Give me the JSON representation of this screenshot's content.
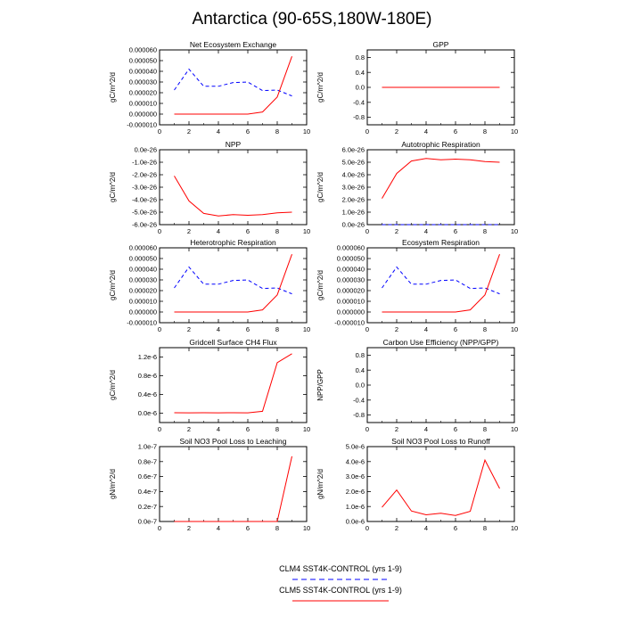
{
  "title": "Antarctica (90-65S,180W-180E)",
  "colors": {
    "clm4": "#0000ff",
    "clm5": "#ff0000",
    "axis": "#000000"
  },
  "legend": {
    "items": [
      {
        "label": "CLM4 SST4K-CONTROL (yrs 1-9)",
        "color": "#0000ff",
        "style": "dashed"
      },
      {
        "label": "CLM5 SST4K-CONTROL (yrs 1-9)",
        "color": "#ff0000",
        "style": "solid"
      }
    ]
  },
  "chart_data": [
    {
      "type": "line",
      "title": "Net Ecosystem Exchange",
      "ylabel": "gC/m^2/d",
      "xlim": [
        0,
        10
      ],
      "xticks": [
        "0",
        "2",
        "4",
        "6",
        "8",
        "10"
      ],
      "ylim": [
        -1e-05,
        6e-05
      ],
      "yticks": [
        {
          "v": -1e-05,
          "label": "-0.000010"
        },
        {
          "v": 0,
          "label": "0.000000"
        },
        {
          "v": 1e-05,
          "label": "0.000010"
        },
        {
          "v": 2e-05,
          "label": "0.000020"
        },
        {
          "v": 3e-05,
          "label": "0.000030"
        },
        {
          "v": 4e-05,
          "label": "0.000040"
        },
        {
          "v": 5e-05,
          "label": "0.000050"
        },
        {
          "v": 6e-05,
          "label": "0.000060"
        }
      ],
      "x": [
        1,
        2,
        3,
        4,
        5,
        6,
        7,
        8,
        9
      ],
      "series": [
        {
          "name": "CLM4 SST4K-CONTROL (yrs 1-9)",
          "style": "dashed",
          "values": [
            2.25e-05,
            4.2e-05,
            2.6e-05,
            2.6e-05,
            2.95e-05,
            3e-05,
            2.2e-05,
            2.25e-05,
            1.7e-05
          ]
        },
        {
          "name": "CLM5 SST4K-CONTROL (yrs 1-9)",
          "style": "solid",
          "values": [
            0,
            0,
            0,
            0,
            0,
            0,
            2e-06,
            1.6e-05,
            5.4e-05
          ]
        }
      ]
    },
    {
      "type": "line",
      "title": "GPP",
      "ylabel": "gC/m^2/d",
      "xlim": [
        0,
        10
      ],
      "xticks": [
        "0",
        "2",
        "4",
        "6",
        "8",
        "10"
      ],
      "ylim": [
        -1,
        1
      ],
      "yticks": [
        {
          "v": -0.8,
          "label": "-0.8"
        },
        {
          "v": -0.4,
          "label": "-0.4"
        },
        {
          "v": 0,
          "label": "0.0"
        },
        {
          "v": 0.4,
          "label": "0.4"
        },
        {
          "v": 0.8,
          "label": "0.8"
        }
      ],
      "x": [
        1,
        2,
        3,
        4,
        5,
        6,
        7,
        8,
        9
      ],
      "series": [
        {
          "name": "CLM4 SST4K-CONTROL (yrs 1-9)",
          "style": "dashed",
          "values": [
            0,
            0,
            0,
            0,
            0,
            0,
            0,
            0,
            0
          ]
        },
        {
          "name": "CLM5 SST4K-CONTROL (yrs 1-9)",
          "style": "solid",
          "values": [
            0,
            0,
            0,
            0,
            0,
            0,
            0,
            0,
            0
          ]
        }
      ]
    },
    {
      "type": "line",
      "title": "NPP",
      "ylabel": "gC/m^2/d",
      "xlim": [
        0,
        10
      ],
      "xticks": [
        "0",
        "2",
        "4",
        "6",
        "8",
        "10"
      ],
      "ylim": [
        -6,
        0
      ],
      "yticks": [
        {
          "v": 0,
          "label": "0.0e-26"
        },
        {
          "v": -1,
          "label": "-1.0e-26"
        },
        {
          "v": -2,
          "label": "-2.0e-26"
        },
        {
          "v": -3,
          "label": "-3.0e-26"
        },
        {
          "v": -4,
          "label": "-4.0e-26"
        },
        {
          "v": -5,
          "label": "-5.0e-26"
        },
        {
          "v": -6,
          "label": "-6.0e-26"
        }
      ],
      "x": [
        1,
        2,
        3,
        4,
        5,
        6,
        7,
        8,
        9
      ],
      "series": [
        {
          "name": "CLM5 SST4K-CONTROL (yrs 1-9)",
          "style": "solid",
          "values": [
            -2.1,
            -4.1,
            -5.1,
            -5.3,
            -5.2,
            -5.25,
            -5.2,
            -5.05,
            -5.0
          ]
        }
      ]
    },
    {
      "type": "line",
      "title": "Autotrophic Respiration",
      "ylabel": "gC/m^2/d",
      "xlim": [
        0,
        10
      ],
      "xticks": [
        "0",
        "2",
        "4",
        "6",
        "8",
        "10"
      ],
      "ylim": [
        0,
        6
      ],
      "yticks": [
        {
          "v": 0,
          "label": "0.0e-26"
        },
        {
          "v": 1,
          "label": "1.0e-26"
        },
        {
          "v": 2,
          "label": "2.0e-26"
        },
        {
          "v": 3,
          "label": "3.0e-26"
        },
        {
          "v": 4,
          "label": "4.0e-26"
        },
        {
          "v": 5,
          "label": "5.0e-26"
        },
        {
          "v": 6,
          "label": "6.0e-26"
        }
      ],
      "x": [
        1,
        2,
        3,
        4,
        5,
        6,
        7,
        8,
        9
      ],
      "series": [
        {
          "name": "CLM4 SST4K-CONTROL (yrs 1-9)",
          "style": "dashed",
          "values": [
            0,
            0,
            0,
            0,
            0,
            0,
            0,
            0,
            0
          ]
        },
        {
          "name": "CLM5 SST4K-CONTROL (yrs 1-9)",
          "style": "solid",
          "values": [
            2.1,
            4.1,
            5.1,
            5.3,
            5.2,
            5.25,
            5.2,
            5.05,
            5.0
          ]
        }
      ]
    },
    {
      "type": "line",
      "title": "Heterotrophic Respiration",
      "ylabel": "gC/m^2/d",
      "xlim": [
        0,
        10
      ],
      "xticks": [
        "0",
        "2",
        "4",
        "6",
        "8",
        "10"
      ],
      "ylim": [
        -1e-05,
        6e-05
      ],
      "yticks": [
        {
          "v": -1e-05,
          "label": "-0.000010"
        },
        {
          "v": 0,
          "label": "0.000000"
        },
        {
          "v": 1e-05,
          "label": "0.000010"
        },
        {
          "v": 2e-05,
          "label": "0.000020"
        },
        {
          "v": 3e-05,
          "label": "0.000030"
        },
        {
          "v": 4e-05,
          "label": "0.000040"
        },
        {
          "v": 5e-05,
          "label": "0.000050"
        },
        {
          "v": 6e-05,
          "label": "0.000060"
        }
      ],
      "x": [
        1,
        2,
        3,
        4,
        5,
        6,
        7,
        8,
        9
      ],
      "series": [
        {
          "name": "CLM4 SST4K-CONTROL (yrs 1-9)",
          "style": "dashed",
          "values": [
            2.25e-05,
            4.2e-05,
            2.6e-05,
            2.6e-05,
            2.95e-05,
            3e-05,
            2.2e-05,
            2.25e-05,
            1.7e-05
          ]
        },
        {
          "name": "CLM5 SST4K-CONTROL (yrs 1-9)",
          "style": "solid",
          "values": [
            0,
            0,
            0,
            0,
            0,
            0,
            2e-06,
            1.6e-05,
            5.4e-05
          ]
        }
      ]
    },
    {
      "type": "line",
      "title": "Ecosystem Respiration",
      "ylabel": "gC/m^2/d",
      "xlim": [
        0,
        10
      ],
      "xticks": [
        "0",
        "2",
        "4",
        "6",
        "8",
        "10"
      ],
      "ylim": [
        -1e-05,
        6e-05
      ],
      "yticks": [
        {
          "v": -1e-05,
          "label": "-0.000010"
        },
        {
          "v": 0,
          "label": "0.000000"
        },
        {
          "v": 1e-05,
          "label": "0.000010"
        },
        {
          "v": 2e-05,
          "label": "0.000020"
        },
        {
          "v": 3e-05,
          "label": "0.000030"
        },
        {
          "v": 4e-05,
          "label": "0.000040"
        },
        {
          "v": 5e-05,
          "label": "0.000050"
        },
        {
          "v": 6e-05,
          "label": "0.000060"
        }
      ],
      "x": [
        1,
        2,
        3,
        4,
        5,
        6,
        7,
        8,
        9
      ],
      "series": [
        {
          "name": "CLM4 SST4K-CONTROL (yrs 1-9)",
          "style": "dashed",
          "values": [
            2.25e-05,
            4.2e-05,
            2.6e-05,
            2.6e-05,
            2.95e-05,
            3e-05,
            2.2e-05,
            2.25e-05,
            1.7e-05
          ]
        },
        {
          "name": "CLM5 SST4K-CONTROL (yrs 1-9)",
          "style": "solid",
          "values": [
            0,
            0,
            0,
            0,
            0,
            0,
            2e-06,
            1.6e-05,
            5.4e-05
          ]
        }
      ]
    },
    {
      "type": "line",
      "title": "Gridcell Surface CH4 Flux",
      "ylabel": "gC/m^2/d",
      "xlim": [
        0,
        10
      ],
      "xticks": [
        "0",
        "2",
        "4",
        "6",
        "8",
        "10"
      ],
      "ylim": [
        -2e-07,
        1.4e-06
      ],
      "yticks": [
        {
          "v": 0,
          "label": "0.0e-6"
        },
        {
          "v": 4e-07,
          "label": "0.4e-6"
        },
        {
          "v": 8e-07,
          "label": "0.8e-6"
        },
        {
          "v": 1.2e-06,
          "label": "1.2e-6"
        }
      ],
      "x": [
        1,
        2,
        3,
        4,
        5,
        6,
        7,
        8,
        9
      ],
      "series": [
        {
          "name": "CLM5 SST4K-CONTROL (yrs 1-9)",
          "style": "solid",
          "values": [
            1e-08,
            8e-09,
            1e-08,
            8e-09,
            1e-08,
            8e-09,
            4e-08,
            1.08e-06,
            1.27e-06
          ]
        }
      ]
    },
    {
      "type": "line",
      "title": "Carbon Use Efficiency (NPP/GPP)",
      "ylabel": "NPP/GPP",
      "xlim": [
        0,
        10
      ],
      "xticks": [
        "0",
        "2",
        "4",
        "6",
        "8",
        "10"
      ],
      "ylim": [
        -1,
        1
      ],
      "yticks": [
        {
          "v": -0.8,
          "label": "-0.8"
        },
        {
          "v": -0.4,
          "label": "-0.4"
        },
        {
          "v": 0,
          "label": "0.0"
        },
        {
          "v": 0.4,
          "label": "0.4"
        },
        {
          "v": 0.8,
          "label": "0.8"
        }
      ],
      "x": [],
      "series": []
    },
    {
      "type": "line",
      "title": "Soil NO3 Pool Loss to Leaching",
      "ylabel": "gN/m^2/d",
      "xlim": [
        0,
        10
      ],
      "xticks": [
        "0",
        "2",
        "4",
        "6",
        "8",
        "10"
      ],
      "ylim": [
        0,
        1e-07
      ],
      "yticks": [
        {
          "v": 0,
          "label": "0.0e-7"
        },
        {
          "v": 2e-08,
          "label": "0.2e-7"
        },
        {
          "v": 4e-08,
          "label": "0.4e-7"
        },
        {
          "v": 6e-08,
          "label": "0.6e-7"
        },
        {
          "v": 8e-08,
          "label": "0.8e-7"
        },
        {
          "v": 1e-07,
          "label": "1.0e-7"
        }
      ],
      "x": [
        1,
        2,
        3,
        4,
        5,
        6,
        7,
        8,
        9
      ],
      "series": [
        {
          "name": "CLM5 SST4K-CONTROL (yrs 1-9)",
          "style": "solid",
          "values": [
            0,
            0,
            0,
            0,
            0,
            0,
            0,
            0,
            8.7e-08
          ]
        }
      ]
    },
    {
      "type": "line",
      "title": "Soil NO3 Pool Loss to Runoff",
      "ylabel": "gN/m^2/d",
      "xlim": [
        0,
        10
      ],
      "xticks": [
        "0",
        "2",
        "4",
        "6",
        "8",
        "10"
      ],
      "ylim": [
        0,
        5e-06
      ],
      "yticks": [
        {
          "v": 0,
          "label": "0.0e-6"
        },
        {
          "v": 1e-06,
          "label": "1.0e-6"
        },
        {
          "v": 2e-06,
          "label": "2.0e-6"
        },
        {
          "v": 3e-06,
          "label": "3.0e-6"
        },
        {
          "v": 4e-06,
          "label": "4.0e-6"
        },
        {
          "v": 5e-06,
          "label": "5.0e-6"
        }
      ],
      "x": [
        1,
        2,
        3,
        4,
        5,
        6,
        7,
        8,
        9
      ],
      "series": [
        {
          "name": "CLM5 SST4K-CONTROL (yrs 1-9)",
          "style": "solid",
          "values": [
            9.5e-07,
            2.1e-06,
            7e-07,
            4.5e-07,
            5.5e-07,
            4e-07,
            6.8e-07,
            4.1e-06,
            2.2e-06
          ]
        }
      ]
    }
  ]
}
